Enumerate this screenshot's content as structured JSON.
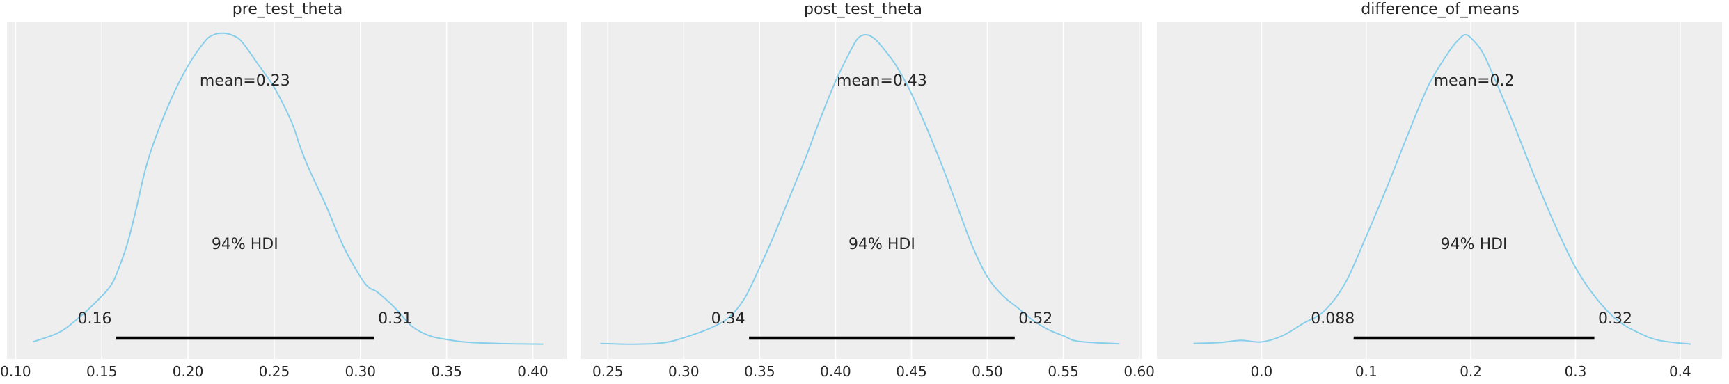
{
  "style": {
    "axes_bg": "#eeeeee",
    "grid": "#ffffff",
    "curve": "#87ceeb",
    "hdi_bar": "#000000",
    "text": "#262626"
  },
  "chart_data": [
    {
      "type": "area",
      "title": "pre_test_theta",
      "mean_label": "mean=0.23",
      "hdi_label": "94% HDI",
      "hdi": [
        0.158,
        0.308
      ],
      "hdi_low_label": "0.16",
      "hdi_high_label": "0.31",
      "xlim": [
        0.095,
        0.42
      ],
      "ticks": [
        0.1,
        0.15,
        0.2,
        0.25,
        0.3,
        0.35,
        0.4
      ],
      "tick_labels": [
        "0.10",
        "0.15",
        "0.20",
        "0.25",
        "0.30",
        "0.35",
        "0.40"
      ],
      "grid": true,
      "x": [
        0.11,
        0.125,
        0.135,
        0.145,
        0.155,
        0.16,
        0.165,
        0.17,
        0.175,
        0.18,
        0.19,
        0.2,
        0.21,
        0.215,
        0.22,
        0.225,
        0.23,
        0.235,
        0.24,
        0.25,
        0.26,
        0.265,
        0.27,
        0.28,
        0.29,
        0.3,
        0.305,
        0.31,
        0.32,
        0.33,
        0.34,
        0.35,
        0.36,
        0.38,
        0.406
      ],
      "density": [
        0.01,
        0.04,
        0.08,
        0.13,
        0.19,
        0.25,
        0.33,
        0.44,
        0.56,
        0.65,
        0.79,
        0.9,
        0.98,
        1.0,
        1.005,
        1.0,
        0.985,
        0.95,
        0.91,
        0.83,
        0.72,
        0.64,
        0.57,
        0.45,
        0.32,
        0.22,
        0.185,
        0.17,
        0.12,
        0.06,
        0.03,
        0.018,
        0.01,
        0.005,
        0.003
      ]
    },
    {
      "type": "area",
      "title": "post_test_theta",
      "mean_label": "mean=0.43",
      "hdi_label": "94% HDI",
      "hdi": [
        0.343,
        0.518
      ],
      "hdi_low_label": "0.34",
      "hdi_high_label": "0.52",
      "xlim": [
        0.232,
        0.602
      ],
      "ticks": [
        0.25,
        0.3,
        0.35,
        0.4,
        0.45,
        0.5,
        0.55,
        0.6
      ],
      "tick_labels": [
        "0.25",
        "0.30",
        "0.35",
        "0.40",
        "0.45",
        "0.50",
        "0.55",
        "0.60"
      ],
      "grid": true,
      "x": [
        0.245,
        0.27,
        0.29,
        0.31,
        0.32,
        0.33,
        0.34,
        0.35,
        0.36,
        0.37,
        0.38,
        0.39,
        0.4,
        0.41,
        0.415,
        0.42,
        0.425,
        0.43,
        0.44,
        0.45,
        0.46,
        0.47,
        0.48,
        0.49,
        0.5,
        0.51,
        0.52,
        0.53,
        0.54,
        0.55,
        0.56,
        0.587
      ],
      "density": [
        0.005,
        0.003,
        0.01,
        0.04,
        0.06,
        0.09,
        0.15,
        0.25,
        0.36,
        0.48,
        0.6,
        0.73,
        0.85,
        0.95,
        0.99,
        1.0,
        0.99,
        0.965,
        0.9,
        0.81,
        0.7,
        0.58,
        0.45,
        0.32,
        0.22,
        0.16,
        0.12,
        0.08,
        0.05,
        0.03,
        0.012,
        0.004
      ]
    },
    {
      "type": "area",
      "title": "difference_of_means",
      "mean_label": "mean=0.2",
      "hdi_label": "94% HDI",
      "hdi": [
        0.088,
        0.318
      ],
      "hdi_low_label": "0.088",
      "hdi_high_label": "0.32",
      "xlim": [
        -0.1,
        0.44
      ],
      "ticks": [
        0.0,
        0.1,
        0.2,
        0.3,
        0.4
      ],
      "tick_labels": [
        "0.0",
        "0.1",
        "0.2",
        "0.3",
        "0.4"
      ],
      "grid": true,
      "x": [
        -0.065,
        -0.04,
        -0.02,
        0.0,
        0.02,
        0.04,
        0.06,
        0.08,
        0.1,
        0.12,
        0.14,
        0.16,
        0.18,
        0.19,
        0.195,
        0.2,
        0.21,
        0.22,
        0.24,
        0.26,
        0.28,
        0.3,
        0.32,
        0.34,
        0.36,
        0.38,
        0.41
      ],
      "density": [
        0.005,
        0.008,
        0.015,
        0.01,
        0.03,
        0.07,
        0.11,
        0.2,
        0.35,
        0.51,
        0.68,
        0.84,
        0.95,
        0.99,
        1.0,
        0.99,
        0.95,
        0.88,
        0.72,
        0.55,
        0.39,
        0.25,
        0.15,
        0.08,
        0.04,
        0.015,
        0.003
      ]
    }
  ]
}
